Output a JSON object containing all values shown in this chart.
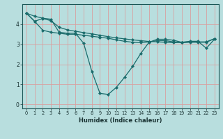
{
  "xlabel": "Humidex (Indice chaleur)",
  "xlim": [
    -0.5,
    23.5
  ],
  "ylim": [
    -0.2,
    5.0
  ],
  "yticks": [
    0,
    1,
    2,
    3,
    4
  ],
  "xticks": [
    0,
    1,
    2,
    3,
    4,
    5,
    6,
    7,
    8,
    9,
    10,
    11,
    12,
    13,
    14,
    15,
    16,
    17,
    18,
    19,
    20,
    21,
    22,
    23
  ],
  "background_color": "#b8dede",
  "grid_color": "#d8a0a0",
  "line_color": "#1a6b6b",
  "line1_volatile": [
    4.55,
    4.4,
    4.3,
    4.25,
    3.6,
    3.55,
    3.55,
    3.05,
    1.65,
    0.55,
    0.5,
    0.85,
    1.35,
    1.9,
    2.55,
    3.1,
    3.25,
    3.25,
    3.2,
    3.1,
    3.15,
    3.15,
    2.8,
    3.25
  ],
  "line2_upper": [
    4.55,
    4.15,
    4.28,
    4.18,
    3.85,
    3.72,
    3.65,
    3.58,
    3.52,
    3.45,
    3.38,
    3.32,
    3.27,
    3.22,
    3.18,
    3.14,
    3.12,
    3.1,
    3.08,
    3.1,
    3.12,
    3.12,
    3.12,
    3.28
  ],
  "line3_lower": [
    4.55,
    4.15,
    3.7,
    3.6,
    3.55,
    3.5,
    3.5,
    3.45,
    3.4,
    3.35,
    3.3,
    3.22,
    3.15,
    3.1,
    3.08,
    3.12,
    3.18,
    3.18,
    3.12,
    3.08,
    3.1,
    3.1,
    3.1,
    3.28
  ]
}
